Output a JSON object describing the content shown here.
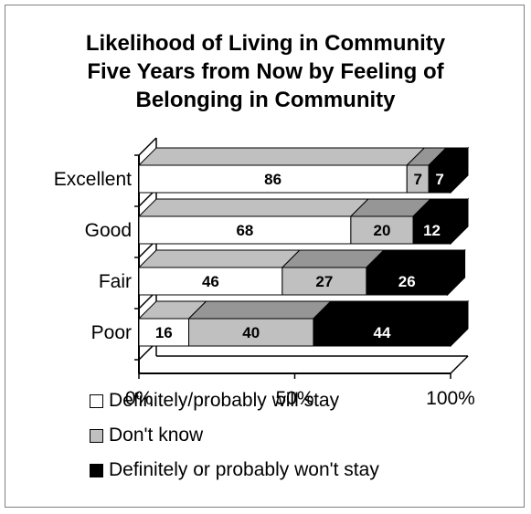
{
  "chart_data": {
    "type": "bar",
    "orientation": "horizontal",
    "stacked": true,
    "percent": true,
    "three_d": true,
    "title_lines": [
      "Likelihood of Living in Community",
      "Five Years from Now by Feeling of",
      "Belonging in Community"
    ],
    "categories": [
      "Excellent",
      "Good",
      "Fair",
      "Poor"
    ],
    "series": [
      {
        "name": "Definitely/probably will stay",
        "values": [
          86,
          68,
          46,
          16
        ],
        "color": "#ffffff",
        "top_color": "#c0c0c0",
        "label_color": "#000000"
      },
      {
        "name": "Don't know",
        "values": [
          7,
          20,
          27,
          40
        ],
        "color": "#c0c0c0",
        "top_color": "#969696",
        "label_color": "#000000"
      },
      {
        "name": "Definitely or probably won't stay",
        "values": [
          7,
          12,
          26,
          44
        ],
        "color": "#000000",
        "top_color": "#000000",
        "label_color": "#ffffff"
      }
    ],
    "xticks": [
      "0%",
      "50%",
      "100%"
    ],
    "xlim": [
      0,
      100
    ],
    "legend_position": "bottom",
    "grid": false
  }
}
